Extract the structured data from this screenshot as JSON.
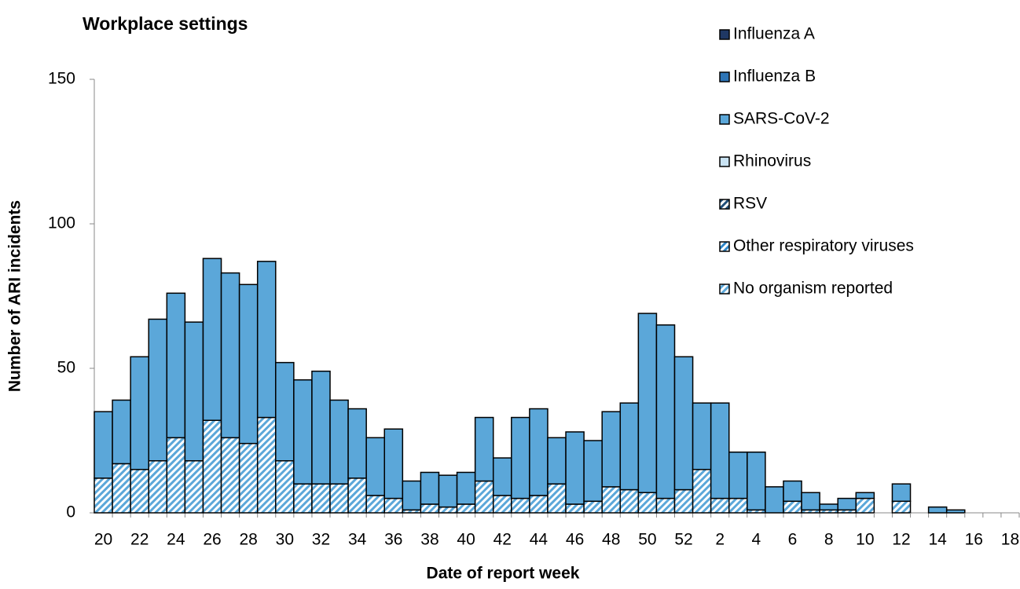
{
  "chart_data": {
    "type": "stacked_bar",
    "title": "Workplace settings",
    "xlabel": "Date of report week",
    "ylabel": "Number of ARI incidents",
    "categories": [
      "20",
      null,
      "22",
      null,
      "24",
      null,
      "26",
      null,
      "28",
      null,
      "30",
      null,
      "32",
      null,
      "34",
      null,
      "36",
      null,
      "38",
      null,
      "40",
      null,
      "42",
      null,
      "44",
      null,
      "46",
      null,
      "48",
      null,
      "50",
      null,
      "52",
      null,
      "2",
      null,
      "4",
      null,
      "6",
      null,
      "8",
      null,
      "10",
      null,
      "12",
      null,
      "14",
      null,
      "16",
      null,
      "18"
    ],
    "ylim": [
      0,
      150
    ],
    "yticks": [
      0,
      50,
      100,
      150
    ],
    "legend": "right",
    "series": [
      {
        "name": "Influenza A",
        "color": "#1f3864",
        "hatch": false,
        "values": [
          0,
          0,
          0,
          0,
          0,
          0,
          0,
          0,
          0,
          0,
          0,
          0,
          0,
          0,
          0,
          0,
          0,
          0,
          0,
          0,
          0,
          0,
          0,
          0,
          0,
          0,
          0,
          0,
          0,
          0,
          0,
          0,
          0,
          0,
          0,
          0,
          0,
          0,
          0,
          0,
          0,
          0,
          0,
          0,
          0,
          0,
          0,
          0,
          0,
          0,
          0
        ]
      },
      {
        "name": "Influenza B",
        "color": "#2e75b6",
        "hatch": false,
        "values": [
          0,
          0,
          0,
          0,
          0,
          0,
          0,
          0,
          0,
          0,
          0,
          0,
          0,
          0,
          0,
          0,
          0,
          0,
          0,
          0,
          0,
          0,
          0,
          0,
          0,
          0,
          0,
          0,
          0,
          0,
          0,
          0,
          0,
          0,
          0,
          0,
          0,
          0,
          0,
          0,
          0,
          0,
          0,
          0,
          0,
          0,
          0,
          0,
          0,
          0,
          0
        ]
      },
      {
        "name": "SARS-CoV-2",
        "color": "#5ba7d9",
        "hatch": false,
        "values": [
          23,
          22,
          39,
          49,
          50,
          48,
          56,
          57,
          55,
          54,
          34,
          36,
          39,
          29,
          24,
          20,
          24,
          10,
          11,
          11,
          11,
          22,
          13,
          28,
          30,
          16,
          25,
          21,
          26,
          30,
          62,
          60,
          46,
          23,
          33,
          16,
          20,
          9,
          7,
          6,
          2,
          4,
          2,
          0,
          6,
          0,
          2,
          1,
          0,
          0,
          0
        ]
      },
      {
        "name": "Rhinovirus",
        "color": "#c9e3f3",
        "hatch": false,
        "values": [
          0,
          0,
          0,
          0,
          0,
          0,
          0,
          0,
          0,
          0,
          0,
          0,
          0,
          0,
          0,
          0,
          0,
          0,
          0,
          0,
          0,
          0,
          0,
          0,
          0,
          0,
          0,
          0,
          0,
          0,
          0,
          0,
          0,
          0,
          0,
          0,
          0,
          0,
          0,
          0,
          0,
          0,
          0,
          0,
          0,
          0,
          0,
          0,
          0,
          0,
          0
        ]
      },
      {
        "name": "RSV",
        "color": "#1f4e79",
        "hatch": true,
        "values": [
          0,
          0,
          0,
          0,
          0,
          0,
          0,
          0,
          0,
          0,
          0,
          0,
          0,
          0,
          0,
          0,
          0,
          0,
          0,
          0,
          0,
          0,
          0,
          0,
          0,
          0,
          0,
          0,
          0,
          0,
          0,
          0,
          0,
          0,
          0,
          0,
          0,
          0,
          0,
          0,
          0,
          0,
          0,
          0,
          0,
          0,
          0,
          0,
          0,
          0,
          0
        ]
      },
      {
        "name": "Other respiratory viruses",
        "color": "#2e86c8",
        "hatch": true,
        "values": [
          0,
          0,
          0,
          0,
          0,
          0,
          0,
          0,
          0,
          0,
          0,
          0,
          0,
          0,
          0,
          0,
          0,
          0,
          0,
          0,
          0,
          0,
          0,
          0,
          0,
          0,
          0,
          0,
          0,
          0,
          0,
          0,
          0,
          0,
          0,
          0,
          0,
          0,
          0,
          0,
          0,
          0,
          0,
          0,
          0,
          0,
          0,
          0,
          0,
          0,
          0
        ]
      },
      {
        "name": "No organism reported",
        "color": "#5ba7d9",
        "hatch": true,
        "values": [
          12,
          17,
          15,
          18,
          26,
          18,
          32,
          26,
          24,
          33,
          18,
          10,
          10,
          10,
          12,
          6,
          5,
          1,
          3,
          2,
          3,
          11,
          6,
          5,
          6,
          10,
          3,
          4,
          9,
          8,
          7,
          5,
          8,
          15,
          5,
          5,
          1,
          0,
          4,
          1,
          1,
          1,
          5,
          0,
          4,
          0,
          0,
          0,
          0,
          0,
          0
        ]
      }
    ]
  }
}
